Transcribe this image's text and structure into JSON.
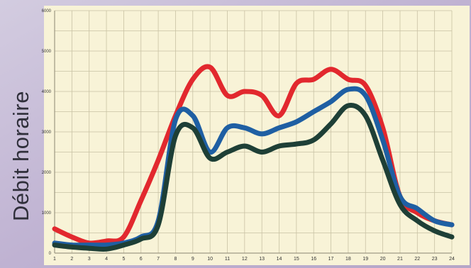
{
  "chart_data": {
    "type": "line",
    "title": "",
    "xlabel": "",
    "ylabel": "Débit horaire",
    "x": [
      1,
      2,
      3,
      4,
      5,
      6,
      7,
      8,
      9,
      10,
      11,
      12,
      13,
      14,
      15,
      16,
      17,
      18,
      19,
      20,
      21,
      22,
      23,
      24
    ],
    "xlim": [
      1,
      24
    ],
    "ylim": [
      0,
      6000
    ],
    "yticks": [
      0,
      1000,
      2000,
      3000,
      4000,
      5000,
      6000
    ],
    "grid": true,
    "legend": "none",
    "series": [
      {
        "color": "#e2282e",
        "values": [
          600,
          400,
          250,
          300,
          400,
          1300,
          2300,
          3400,
          4300,
          4600,
          3900,
          4000,
          3900,
          3400,
          4200,
          4300,
          4550,
          4300,
          4150,
          3100,
          1400,
          1000,
          800,
          700
        ]
      },
      {
        "color": "#1f5fa3",
        "values": [
          250,
          200,
          200,
          200,
          250,
          400,
          800,
          3300,
          3400,
          2500,
          3100,
          3100,
          2950,
          3100,
          3250,
          3500,
          3750,
          4050,
          3900,
          2800,
          1400,
          1100,
          800,
          700
        ]
      },
      {
        "color": "#1e3f36",
        "values": [
          200,
          150,
          120,
          100,
          200,
          350,
          700,
          2900,
          3100,
          2350,
          2500,
          2650,
          2500,
          2650,
          2700,
          2800,
          3200,
          3650,
          3400,
          2300,
          1200,
          800,
          550,
          400
        ]
      }
    ]
  }
}
